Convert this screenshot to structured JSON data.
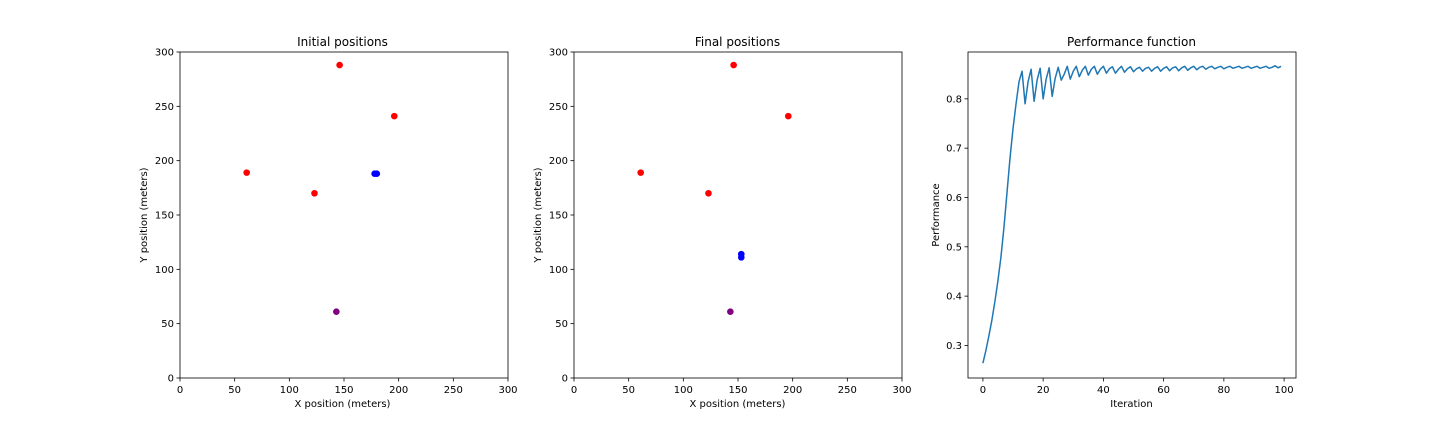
{
  "chart_data": [
    {
      "type": "scatter",
      "title": "Initial positions",
      "xlabel": "X position (meters)",
      "ylabel": "Y position (meters)",
      "xlim": [
        0,
        300
      ],
      "ylim": [
        0,
        300
      ],
      "xticks": [
        0,
        50,
        100,
        150,
        200,
        250,
        300
      ],
      "yticks": [
        0,
        50,
        100,
        150,
        200,
        250,
        300
      ],
      "grid": false,
      "points": [
        {
          "x": 146,
          "y": 288,
          "color": "#ff0000"
        },
        {
          "x": 196,
          "y": 241,
          "color": "#ff0000"
        },
        {
          "x": 61,
          "y": 189,
          "color": "#ff0000"
        },
        {
          "x": 123,
          "y": 170,
          "color": "#ff0000"
        },
        {
          "x": 178,
          "y": 188,
          "color": "#0000ff"
        },
        {
          "x": 180,
          "y": 188,
          "color": "#0000ff"
        },
        {
          "x": 143,
          "y": 61,
          "color": "#800080"
        }
      ]
    },
    {
      "type": "scatter",
      "title": "Final positions",
      "xlabel": "X position (meters)",
      "ylabel": "Y position (meters)",
      "xlim": [
        0,
        300
      ],
      "ylim": [
        0,
        300
      ],
      "xticks": [
        0,
        50,
        100,
        150,
        200,
        250,
        300
      ],
      "yticks": [
        0,
        50,
        100,
        150,
        200,
        250,
        300
      ],
      "grid": false,
      "points": [
        {
          "x": 146,
          "y": 288,
          "color": "#ff0000"
        },
        {
          "x": 196,
          "y": 241,
          "color": "#ff0000"
        },
        {
          "x": 61,
          "y": 189,
          "color": "#ff0000"
        },
        {
          "x": 123,
          "y": 170,
          "color": "#ff0000"
        },
        {
          "x": 153,
          "y": 114,
          "color": "#0000ff"
        },
        {
          "x": 153,
          "y": 111,
          "color": "#0000ff"
        },
        {
          "x": 143,
          "y": 61,
          "color": "#800080"
        }
      ]
    },
    {
      "type": "line",
      "title": "Performance function",
      "xlabel": "Iteration",
      "ylabel": "Performance",
      "xlim": [
        -4.95,
        103.95
      ],
      "ylim": [
        0.234,
        0.895
      ],
      "xticks": [
        0,
        20,
        40,
        60,
        80,
        100
      ],
      "yticks": [
        0.3,
        0.4,
        0.5,
        0.6,
        0.7,
        0.8
      ],
      "ytick_labels": [
        "0.3",
        "0.4",
        "0.5",
        "0.6",
        "0.7",
        "0.8"
      ],
      "grid": false,
      "series": [
        {
          "color": "#1f77b4",
          "x": [
            0,
            1,
            2,
            3,
            4,
            5,
            6,
            7,
            8,
            9,
            10,
            11,
            12,
            13,
            14,
            15,
            16,
            17,
            18,
            19,
            20,
            21,
            22,
            23,
            24,
            25,
            26,
            27,
            28,
            29,
            30,
            31,
            32,
            33,
            34,
            35,
            36,
            37,
            38,
            39,
            40,
            41,
            42,
            43,
            44,
            45,
            46,
            47,
            48,
            49,
            50,
            51,
            52,
            53,
            54,
            55,
            56,
            57,
            58,
            59,
            60,
            61,
            62,
            63,
            64,
            65,
            66,
            67,
            68,
            69,
            70,
            71,
            72,
            73,
            74,
            75,
            76,
            77,
            78,
            79,
            80,
            81,
            82,
            83,
            84,
            85,
            86,
            87,
            88,
            89,
            90,
            91,
            92,
            93,
            94,
            95,
            96,
            97,
            98,
            99
          ],
          "y": [
            0.264,
            0.29,
            0.32,
            0.352,
            0.39,
            0.432,
            0.48,
            0.54,
            0.61,
            0.68,
            0.74,
            0.79,
            0.835,
            0.856,
            0.79,
            0.835,
            0.86,
            0.795,
            0.838,
            0.862,
            0.8,
            0.84,
            0.863,
            0.805,
            0.842,
            0.864,
            0.838,
            0.85,
            0.866,
            0.84,
            0.856,
            0.866,
            0.845,
            0.858,
            0.866,
            0.848,
            0.86,
            0.866,
            0.85,
            0.86,
            0.866,
            0.852,
            0.861,
            0.865,
            0.852,
            0.86,
            0.866,
            0.854,
            0.861,
            0.865,
            0.855,
            0.861,
            0.864,
            0.856,
            0.862,
            0.864,
            0.856,
            0.862,
            0.865,
            0.856,
            0.862,
            0.865,
            0.857,
            0.863,
            0.865,
            0.857,
            0.863,
            0.866,
            0.858,
            0.863,
            0.866,
            0.859,
            0.864,
            0.866,
            0.86,
            0.864,
            0.866,
            0.861,
            0.864,
            0.866,
            0.861,
            0.864,
            0.866,
            0.862,
            0.864,
            0.866,
            0.862,
            0.864,
            0.866,
            0.862,
            0.864,
            0.866,
            0.862,
            0.864,
            0.866,
            0.862,
            0.864,
            0.867,
            0.863,
            0.866
          ]
        }
      ]
    }
  ]
}
